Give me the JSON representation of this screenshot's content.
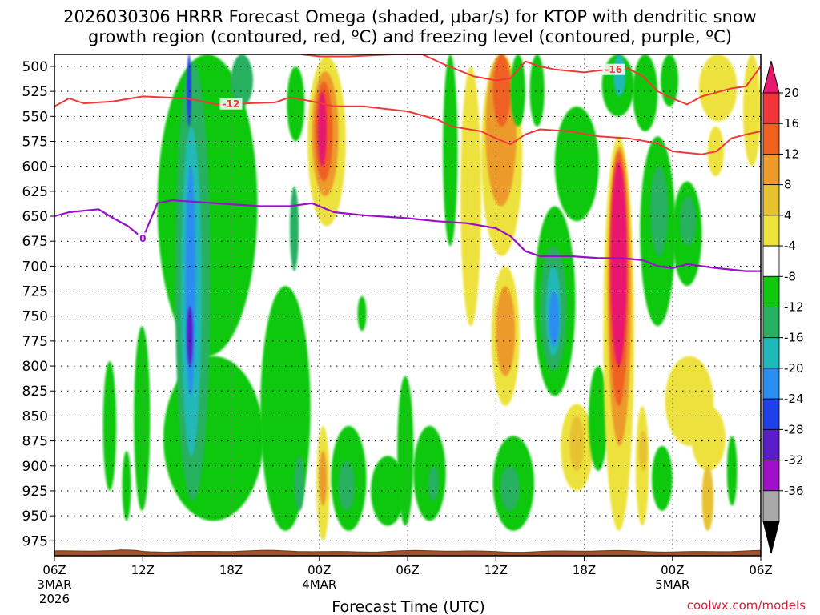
{
  "chart_data": {
    "type": "heatmap",
    "title_lines": [
      "2026030306 HRRR Forecast Omega (shaded, μbar/s) for KTOP with dendritic snow",
      "growth region (contoured, red, ºC) and freezing level (contoured, purple, ºC)"
    ],
    "xlabel": "Forecast Time (UTC)",
    "ylabel": "",
    "credit": "coolwx.com/models",
    "x_range_hours": [
      0,
      48
    ],
    "y_range_mb": [
      488,
      990
    ],
    "y_axis_inverted": true,
    "y_ticks": [
      500,
      525,
      550,
      575,
      600,
      625,
      650,
      675,
      700,
      725,
      750,
      775,
      800,
      825,
      850,
      875,
      900,
      925,
      950,
      975
    ],
    "x_ticks": [
      {
        "hour": 0,
        "label": "06Z",
        "sub1": "3MAR",
        "sub2": "2026"
      },
      {
        "hour": 6,
        "label": "12Z",
        "sub1": "",
        "sub2": ""
      },
      {
        "hour": 12,
        "label": "18Z",
        "sub1": "",
        "sub2": ""
      },
      {
        "hour": 18,
        "label": "00Z",
        "sub1": "4MAR",
        "sub2": ""
      },
      {
        "hour": 24,
        "label": "06Z",
        "sub1": "",
        "sub2": ""
      },
      {
        "hour": 30,
        "label": "12Z",
        "sub1": "",
        "sub2": ""
      },
      {
        "hour": 36,
        "label": "18Z",
        "sub1": "",
        "sub2": ""
      },
      {
        "hour": 42,
        "label": "00Z",
        "sub1": "5MAR",
        "sub2": ""
      },
      {
        "hour": 48,
        "label": "06Z",
        "sub1": "",
        "sub2": ""
      }
    ],
    "grid": true,
    "colorbar": {
      "labels": [
        "20",
        "16",
        "12",
        "8",
        "4",
        "-4",
        "-8",
        "-12",
        "-16",
        "-20",
        "-24",
        "-28",
        "-32",
        "-36"
      ],
      "bins": [
        {
          "min": 16,
          "max": 20,
          "color": "#f0363a"
        },
        {
          "min": 12,
          "max": 16,
          "color": "#f06020"
        },
        {
          "min": 8,
          "max": 12,
          "color": "#ec9a2a"
        },
        {
          "min": 4,
          "max": 8,
          "color": "#e6c230"
        },
        {
          "min": 0,
          "max": 4,
          "color": "#ede23c"
        },
        {
          "min": -4,
          "max": 4,
          "color": "#ffffff"
        },
        {
          "min": -8,
          "max": -4,
          "color": "#10c810"
        },
        {
          "min": -12,
          "max": -8,
          "color": "#28b060"
        },
        {
          "min": -16,
          "max": -12,
          "color": "#20b8b8"
        },
        {
          "min": -20,
          "max": -16,
          "color": "#2a8ef0"
        },
        {
          "min": -24,
          "max": -20,
          "color": "#2040e8"
        },
        {
          "min": -28,
          "max": -24,
          "color": "#5a1ec8"
        },
        {
          "min": -32,
          "max": -28,
          "color": "#a010c8"
        },
        {
          "min": -36,
          "max": -32,
          "color": "#a8a8a8"
        }
      ],
      "top_arrow_color": "#e8186e",
      "bottom_arrow_color": "#000000"
    },
    "omega_features": [
      {
        "x0": 3.3,
        "x1": 4.2,
        "y0": 795,
        "y1": 925,
        "color": "#10c810"
      },
      {
        "x0": 4.6,
        "x1": 5.2,
        "y0": 885,
        "y1": 955,
        "color": "#10c810"
      },
      {
        "x0": 5.4,
        "x1": 6.5,
        "y0": 760,
        "y1": 945,
        "color": "#10c810"
      },
      {
        "x0": 7.0,
        "x1": 13.8,
        "y0": 488,
        "y1": 790,
        "color": "#10c810"
      },
      {
        "x0": 7.4,
        "x1": 14.2,
        "y0": 790,
        "y1": 955,
        "color": "#10c810"
      },
      {
        "x0": 8.2,
        "x1": 10.6,
        "y0": 495,
        "y1": 935,
        "color": "#28b060"
      },
      {
        "x0": 8.6,
        "x1": 10.0,
        "y0": 560,
        "y1": 890,
        "color": "#20b8b8"
      },
      {
        "x0": 8.9,
        "x1": 9.6,
        "y0": 600,
        "y1": 830,
        "color": "#2a8ef0"
      },
      {
        "x0": 9.0,
        "x1": 9.4,
        "y0": 740,
        "y1": 800,
        "color": "#5a1ec8"
      },
      {
        "x0": 9.0,
        "x1": 9.3,
        "y0": 488,
        "y1": 560,
        "color": "#2040e8"
      },
      {
        "x0": 12.0,
        "x1": 13.5,
        "y0": 488,
        "y1": 540,
        "color": "#28b060"
      },
      {
        "x0": 14.0,
        "x1": 17.4,
        "y0": 720,
        "y1": 965,
        "color": "#10c810"
      },
      {
        "x0": 15.8,
        "x1": 17.0,
        "y0": 500,
        "y1": 575,
        "color": "#10c810"
      },
      {
        "x0": 16.0,
        "x1": 16.6,
        "y0": 620,
        "y1": 705,
        "color": "#28b060"
      },
      {
        "x0": 16.3,
        "x1": 17.0,
        "y0": 890,
        "y1": 945,
        "color": "#28b060"
      },
      {
        "x0": 17.2,
        "x1": 19.8,
        "y0": 490,
        "y1": 660,
        "color": "#ede23c"
      },
      {
        "x0": 17.5,
        "x1": 19.3,
        "y0": 505,
        "y1": 630,
        "color": "#ec9a2a"
      },
      {
        "x0": 17.7,
        "x1": 18.9,
        "y0": 515,
        "y1": 615,
        "color": "#f06020"
      },
      {
        "x0": 17.9,
        "x1": 18.5,
        "y0": 525,
        "y1": 600,
        "color": "#e8186e"
      },
      {
        "x0": 17.8,
        "x1": 18.7,
        "y0": 860,
        "y1": 975,
        "color": "#ede23c"
      },
      {
        "x0": 18.0,
        "x1": 18.5,
        "y0": 885,
        "y1": 940,
        "color": "#ec9a2a"
      },
      {
        "x0": 18.8,
        "x1": 21.2,
        "y0": 860,
        "y1": 965,
        "color": "#10c810"
      },
      {
        "x0": 19.3,
        "x1": 20.4,
        "y0": 895,
        "y1": 945,
        "color": "#28b060"
      },
      {
        "x0": 20.6,
        "x1": 21.2,
        "y0": 730,
        "y1": 765,
        "color": "#10c810"
      },
      {
        "x0": 21.5,
        "x1": 23.8,
        "y0": 890,
        "y1": 960,
        "color": "#10c810"
      },
      {
        "x0": 23.3,
        "x1": 24.4,
        "y0": 810,
        "y1": 960,
        "color": "#10c810"
      },
      {
        "x0": 24.4,
        "x1": 26.6,
        "y0": 860,
        "y1": 955,
        "color": "#10c810"
      },
      {
        "x0": 25.4,
        "x1": 26.1,
        "y0": 900,
        "y1": 935,
        "color": "#28b060"
      },
      {
        "x0": 26.4,
        "x1": 27.4,
        "y0": 488,
        "y1": 680,
        "color": "#10c810"
      },
      {
        "x0": 27.6,
        "x1": 29.0,
        "y0": 500,
        "y1": 760,
        "color": "#ede23c"
      },
      {
        "x0": 29.0,
        "x1": 31.8,
        "y0": 488,
        "y1": 690,
        "color": "#ede23c"
      },
      {
        "x0": 29.3,
        "x1": 31.4,
        "y0": 488,
        "y1": 640,
        "color": "#ec9a2a"
      },
      {
        "x0": 29.8,
        "x1": 31.0,
        "y0": 488,
        "y1": 560,
        "color": "#f06020"
      },
      {
        "x0": 29.7,
        "x1": 31.6,
        "y0": 700,
        "y1": 840,
        "color": "#ede23c"
      },
      {
        "x0": 30.0,
        "x1": 31.3,
        "y0": 720,
        "y1": 810,
        "color": "#ec9a2a"
      },
      {
        "x0": 29.8,
        "x1": 32.6,
        "y0": 870,
        "y1": 965,
        "color": "#10c810"
      },
      {
        "x0": 30.3,
        "x1": 31.6,
        "y0": 900,
        "y1": 945,
        "color": "#28b060"
      },
      {
        "x0": 31.0,
        "x1": 32.0,
        "y0": 488,
        "y1": 560,
        "color": "#10c810"
      },
      {
        "x0": 32.6,
        "x1": 35.4,
        "y0": 640,
        "y1": 830,
        "color": "#10c810"
      },
      {
        "x0": 33.0,
        "x1": 34.8,
        "y0": 680,
        "y1": 805,
        "color": "#28b060"
      },
      {
        "x0": 33.4,
        "x1": 34.4,
        "y0": 700,
        "y1": 790,
        "color": "#20b8b8"
      },
      {
        "x0": 33.6,
        "x1": 34.3,
        "y0": 725,
        "y1": 780,
        "color": "#2a8ef0"
      },
      {
        "x0": 32.3,
        "x1": 33.3,
        "y0": 488,
        "y1": 560,
        "color": "#10c810"
      },
      {
        "x0": 34.0,
        "x1": 37.0,
        "y0": 540,
        "y1": 655,
        "color": "#10c810"
      },
      {
        "x0": 34.4,
        "x1": 36.6,
        "y0": 838,
        "y1": 925,
        "color": "#ede23c"
      },
      {
        "x0": 35.0,
        "x1": 36.0,
        "y0": 850,
        "y1": 905,
        "color": "#e6c230"
      },
      {
        "x0": 36.3,
        "x1": 37.6,
        "y0": 800,
        "y1": 905,
        "color": "#10c810"
      },
      {
        "x0": 37.2,
        "x1": 39.4,
        "y0": 488,
        "y1": 550,
        "color": "#10c810"
      },
      {
        "x0": 38.0,
        "x1": 38.8,
        "y0": 488,
        "y1": 530,
        "color": "#20b8b8"
      },
      {
        "x0": 37.3,
        "x1": 39.4,
        "y0": 570,
        "y1": 965,
        "color": "#ede23c"
      },
      {
        "x0": 37.6,
        "x1": 39.2,
        "y0": 580,
        "y1": 880,
        "color": "#ec9a2a"
      },
      {
        "x0": 37.7,
        "x1": 39.0,
        "y0": 585,
        "y1": 840,
        "color": "#f06020"
      },
      {
        "x0": 37.8,
        "x1": 38.9,
        "y0": 595,
        "y1": 800,
        "color": "#e8186e"
      },
      {
        "x0": 39.3,
        "x1": 41.0,
        "y0": 488,
        "y1": 565,
        "color": "#10c810"
      },
      {
        "x0": 39.5,
        "x1": 40.4,
        "y0": 840,
        "y1": 960,
        "color": "#ede23c"
      },
      {
        "x0": 39.7,
        "x1": 40.3,
        "y0": 865,
        "y1": 905,
        "color": "#e6c230"
      },
      {
        "x0": 39.8,
        "x1": 42.2,
        "y0": 570,
        "y1": 760,
        "color": "#10c810"
      },
      {
        "x0": 40.5,
        "x1": 41.7,
        "y0": 600,
        "y1": 690,
        "color": "#28b060"
      },
      {
        "x0": 40.6,
        "x1": 42.0,
        "y0": 880,
        "y1": 945,
        "color": "#10c810"
      },
      {
        "x0": 41.2,
        "x1": 42.4,
        "y0": 488,
        "y1": 540,
        "color": "#10c810"
      },
      {
        "x0": 42.0,
        "x1": 44.0,
        "y0": 615,
        "y1": 720,
        "color": "#10c810"
      },
      {
        "x0": 42.5,
        "x1": 43.6,
        "y0": 630,
        "y1": 680,
        "color": "#28b060"
      },
      {
        "x0": 41.5,
        "x1": 44.8,
        "y0": 790,
        "y1": 880,
        "color": "#ede23c"
      },
      {
        "x0": 43.8,
        "x1": 46.4,
        "y0": 488,
        "y1": 555,
        "color": "#ede23c"
      },
      {
        "x0": 43.3,
        "x1": 45.6,
        "y0": 840,
        "y1": 905,
        "color": "#ede23c"
      },
      {
        "x0": 44.0,
        "x1": 44.8,
        "y0": 900,
        "y1": 965,
        "color": "#e6c230"
      },
      {
        "x0": 44.4,
        "x1": 45.5,
        "y0": 560,
        "y1": 610,
        "color": "#ede23c"
      },
      {
        "x0": 45.7,
        "x1": 46.4,
        "y0": 870,
        "y1": 940,
        "color": "#10c810"
      },
      {
        "x0": 46.8,
        "x1": 48.0,
        "y0": 488,
        "y1": 600,
        "color": "#ede23c"
      }
    ],
    "dgz_contours": [
      {
        "label": "-12",
        "label_at_hour": 12.0,
        "color": "#f03a3a",
        "points": [
          [
            0,
            540
          ],
          [
            1,
            532
          ],
          [
            2,
            537
          ],
          [
            4,
            535
          ],
          [
            6,
            530
          ],
          [
            9,
            532
          ],
          [
            11,
            538
          ],
          [
            13,
            537
          ],
          [
            15,
            536
          ],
          [
            16,
            531
          ],
          [
            17.5,
            535
          ],
          [
            19,
            540
          ],
          [
            21,
            540
          ],
          [
            24,
            545
          ],
          [
            26,
            553
          ],
          [
            27,
            560
          ],
          [
            29,
            565
          ],
          [
            30,
            572
          ],
          [
            31,
            578
          ],
          [
            32,
            568
          ],
          [
            33,
            563
          ],
          [
            35,
            565
          ],
          [
            37,
            570
          ],
          [
            39,
            572
          ],
          [
            41,
            577
          ],
          [
            42,
            585
          ],
          [
            44,
            588
          ],
          [
            45,
            585
          ],
          [
            46,
            572
          ],
          [
            47,
            568
          ],
          [
            48,
            565
          ]
        ]
      },
      {
        "label": "-16",
        "label_at_hour": 38.0,
        "color": "#f03a3a",
        "points": [
          [
            16.8,
            488
          ],
          [
            18,
            490
          ],
          [
            20,
            490
          ],
          [
            23,
            488
          ],
          [
            25,
            488
          ],
          [
            26.5,
            498
          ],
          [
            28.5,
            510
          ],
          [
            30,
            514
          ],
          [
            31,
            512
          ],
          [
            32,
            495
          ],
          [
            33,
            500
          ],
          [
            34,
            503
          ],
          [
            36,
            506
          ],
          [
            37,
            504
          ],
          [
            39,
            502
          ],
          [
            40,
            510
          ],
          [
            41,
            525
          ],
          [
            42,
            532
          ],
          [
            43,
            538
          ],
          [
            44,
            530
          ],
          [
            46,
            522
          ],
          [
            47,
            520
          ],
          [
            48,
            500
          ]
        ]
      }
    ],
    "freezing_level": {
      "label": "0",
      "label_at_hour": 6.0,
      "color": "#9a10c8",
      "points": [
        [
          0,
          650
        ],
        [
          1,
          646
        ],
        [
          3,
          643
        ],
        [
          4,
          652
        ],
        [
          5,
          660
        ],
        [
          6,
          672
        ],
        [
          7,
          637
        ],
        [
          8,
          634
        ],
        [
          10,
          636
        ],
        [
          12,
          638
        ],
        [
          14,
          640
        ],
        [
          16,
          640
        ],
        [
          17.5,
          637
        ],
        [
          19,
          646
        ],
        [
          21,
          649
        ],
        [
          24,
          652
        ],
        [
          26,
          655
        ],
        [
          28,
          657
        ],
        [
          30,
          662
        ],
        [
          31,
          670
        ],
        [
          32,
          685
        ],
        [
          33,
          690
        ],
        [
          35,
          690
        ],
        [
          37,
          692
        ],
        [
          38.5,
          692
        ],
        [
          40,
          694
        ],
        [
          41,
          700
        ],
        [
          42,
          702
        ],
        [
          43,
          698
        ],
        [
          45,
          702
        ],
        [
          47,
          705
        ],
        [
          48,
          705
        ]
      ]
    }
  }
}
